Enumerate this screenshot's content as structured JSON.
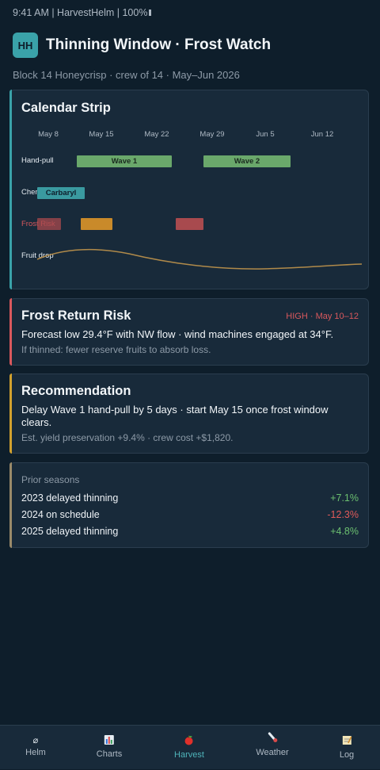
{
  "status_bar": {
    "text": "9:41 AM | HarvestHelm | 100%"
  },
  "header": {
    "icon_text": "HH",
    "title": "Thinning Window · Frost Watch",
    "subtitle": "Block 14 Honeycrisp · crew of 14 · May–Jun 2026"
  },
  "calendar": {
    "title": "Calendar Strip",
    "dates": [
      "May 8",
      "May 15",
      "May 22",
      "May 29",
      "Jun 5",
      "Jun 12"
    ],
    "rows": {
      "hand_pull": "Hand-pull",
      "chem": "Chem",
      "frost": "Frost Risk",
      "fruit_drop": "Fruit drop"
    },
    "bars": {
      "wave1": "Wave 1",
      "wave2": "Wave 2",
      "carbaryl": "Carbaryl"
    },
    "colors": {
      "wave": "#6aa86b",
      "carbaryl": "#3a9aa0",
      "frost_high": "#a84a4e",
      "frost_mid": "#c98a2a",
      "drop_curve": "#b08a4a"
    }
  },
  "frost": {
    "title": "Frost Return Risk",
    "level": "HIGH · May 10–12",
    "line": "Forecast low 29.4°F with NW flow · wind machines engaged at 34°F.",
    "note": "If thinned: fewer reserve fruits to absorb loss.",
    "accent": "#d9585d"
  },
  "recommendation": {
    "title": "Recommendation",
    "line1": "Delay Wave 1 hand-pull by 5 days · start May 15 once frost window",
    "line2": "clears.",
    "note": "Est. yield preservation +9.4% · crew cost +$1,820.",
    "accent": "#d2a12e"
  },
  "prior": {
    "heading": "Prior seasons",
    "rows": [
      {
        "label": "2023 delayed thinning",
        "value": "+7.1%",
        "color": "#6cc070"
      },
      {
        "label": "2024 on schedule",
        "value": "-12.3%",
        "color": "#e05a5a"
      },
      {
        "label": "2025 delayed thinning",
        "value": "+4.8%",
        "color": "#6cc070"
      }
    ],
    "accent": "#9a8a6a"
  },
  "tabs": [
    {
      "icon": "⌀",
      "label": "Helm"
    },
    {
      "icon": "▮",
      "label": "Charts"
    },
    {
      "icon": "●",
      "label": "Harvest"
    },
    {
      "icon": "╱",
      "label": "Weather"
    },
    {
      "icon": "▤",
      "label": "Log"
    }
  ]
}
